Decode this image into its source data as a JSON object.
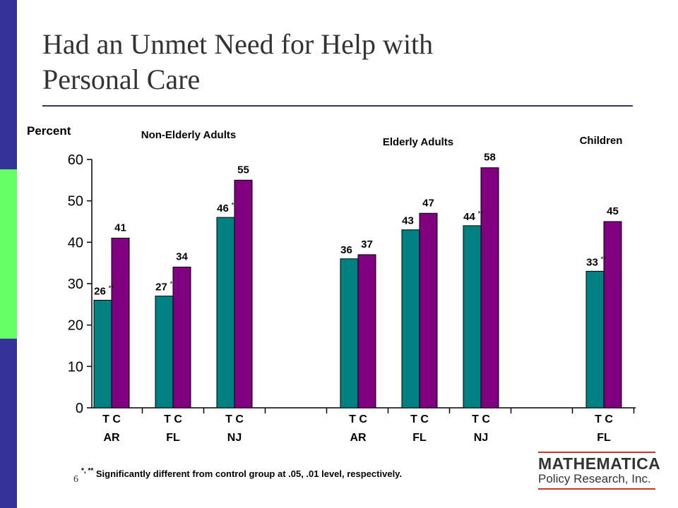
{
  "slide": {
    "title_line1": "Had an Unmet Need for Help with",
    "title_line2": "Personal Care",
    "page_number": "6",
    "footnote_marks": "*, **",
    "footnote_text": " Significantly different from control group at  .05,  .01 level, respectively.",
    "logo_name": "MATHEMATICA",
    "logo_sub": "Policy Research, Inc.",
    "colors": {
      "side_bar": "#333399",
      "side_accent": "#66ff66",
      "rule": "#333366",
      "logo_red": "#c0392b"
    }
  },
  "chart_data": {
    "type": "bar",
    "ylabel": "Percent",
    "ylim": [
      0,
      60
    ],
    "yticks": [
      0,
      10,
      20,
      30,
      40,
      50,
      60
    ],
    "grid": false,
    "series": [
      {
        "name": "T",
        "color": "#008080"
      },
      {
        "name": "C",
        "color": "#800080"
      }
    ],
    "groups": [
      {
        "label": "Non-Elderly Adults",
        "categories": [
          {
            "state": "AR",
            "tc": "T  C",
            "T": 26,
            "C": 41,
            "sig": "**"
          },
          {
            "state": "FL",
            "tc": "T  C",
            "T": 27,
            "C": 34,
            "sig": "*"
          },
          {
            "state": "NJ",
            "tc": "T  C",
            "T": 46,
            "C": 55,
            "sig": "*"
          }
        ]
      },
      {
        "label": "Elderly Adults",
        "categories": [
          {
            "state": "AR",
            "tc": "T  C",
            "T": 36,
            "C": 37,
            "sig": ""
          },
          {
            "state": "FL",
            "tc": "T  C",
            "T": 43,
            "C": 47,
            "sig": ""
          },
          {
            "state": "NJ",
            "tc": "T  C",
            "T": 44,
            "C": 58,
            "sig": "**"
          }
        ]
      },
      {
        "label": "Children",
        "categories": [
          {
            "state": "FL",
            "tc": "T  C",
            "T": 33,
            "C": 45,
            "sig": "**"
          }
        ]
      }
    ]
  }
}
